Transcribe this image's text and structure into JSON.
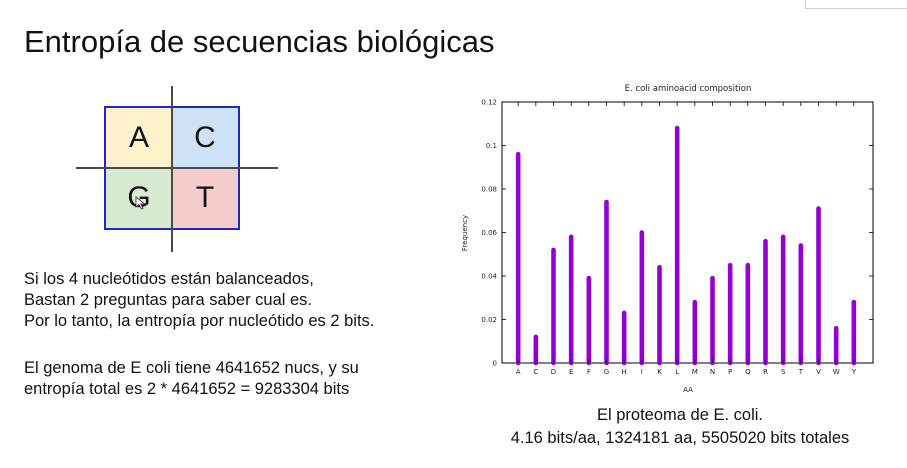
{
  "slide": {
    "title": "Entropía de secuencias biológicas",
    "nucleotide_grid": [
      "A",
      "C",
      "G",
      "T"
    ],
    "paragraph1": [
      "Si los 4 nucleótidos están balanceados,",
      "Bastan 2 preguntas para saber cual es.",
      "Por lo tanto, la entropía por nucleótido es 2 bits."
    ],
    "paragraph2": [
      "El genoma de E coli tiene 4641652 nucs, y su",
      "entropía total es 2 * 4641652 = 9283304 bits"
    ],
    "caption": [
      "El proteoma de E. coli.",
      "4.16 bits/aa, 1324181 aa, 5505020 bits totales"
    ],
    "colors": {
      "cell_A": "#fdf2cc",
      "cell_C": "#cfe1f5",
      "cell_G": "#d9ead3",
      "cell_T": "#f4cccc",
      "grid_border": "#1e28c8",
      "bar": "#9400d3"
    }
  },
  "chart_data": {
    "type": "bar",
    "title": "E. coli aminoacid composition",
    "xlabel": "AA",
    "ylabel": "Frequency",
    "ylim": [
      0,
      0.12
    ],
    "yticks": [
      "0",
      "0.02",
      "0.04",
      "0.06",
      "0.08",
      "0.1",
      "0.12"
    ],
    "categories": [
      "A",
      "C",
      "D",
      "E",
      "F",
      "G",
      "H",
      "I",
      "K",
      "L",
      "M",
      "N",
      "P",
      "Q",
      "R",
      "S",
      "T",
      "V",
      "W",
      "Y"
    ],
    "values": [
      0.096,
      0.012,
      0.052,
      0.058,
      0.039,
      0.074,
      0.023,
      0.06,
      0.044,
      0.108,
      0.028,
      0.039,
      0.045,
      0.045,
      0.056,
      0.058,
      0.054,
      0.071,
      0.016,
      0.028
    ],
    "grid": false
  }
}
